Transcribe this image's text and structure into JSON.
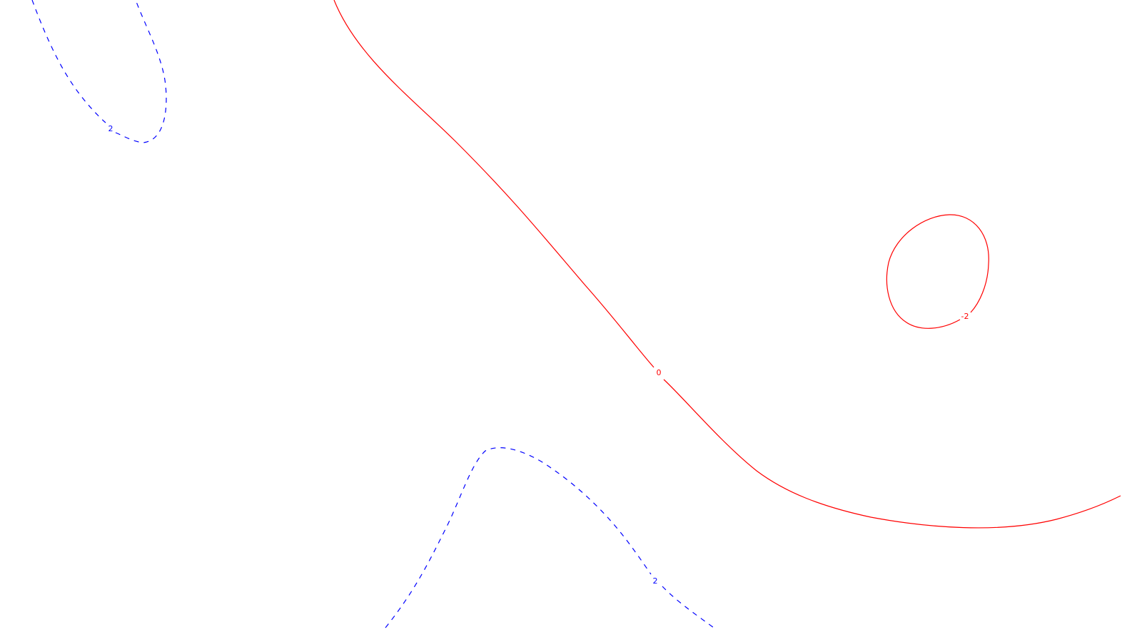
{
  "chart_data": {
    "type": "contour",
    "title": "",
    "xlabel": "",
    "ylabel": "",
    "grid": false,
    "contours": [
      {
        "id": "pos-upper-left",
        "level": 2,
        "label": "2",
        "color": "#0000ff",
        "style": "dashed"
      },
      {
        "id": "zero-diagonal",
        "level": 0,
        "label": "0",
        "color": "#ff0000",
        "style": "solid"
      },
      {
        "id": "neg-ellipse",
        "level": -2,
        "label": "-2",
        "color": "#ff0000",
        "style": "solid"
      },
      {
        "id": "pos-lower",
        "level": 2,
        "label": "2",
        "color": "#0000ff",
        "style": "dashed"
      }
    ]
  }
}
